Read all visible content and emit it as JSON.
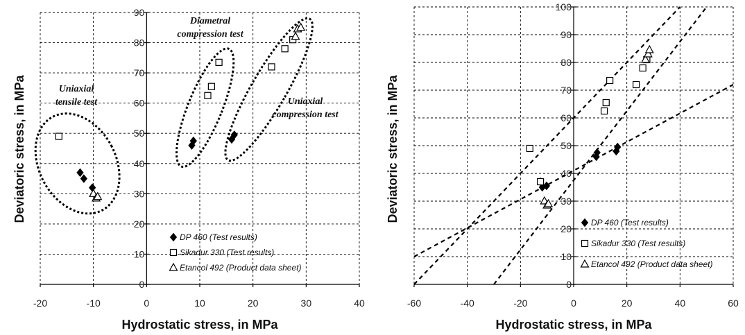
{
  "chart_data": [
    {
      "type": "scatter",
      "title": "",
      "xlabel": "Hydrostatic stress, in MPa",
      "ylabel": "Deviatoric stress, in MPa",
      "xlim": [
        -20,
        40
      ],
      "ylim": [
        0,
        90
      ],
      "xticks": [
        "-20",
        "-10",
        "0",
        "10",
        "20",
        "30",
        "40"
      ],
      "yticks": [
        "0",
        "10",
        "20",
        "30",
        "40",
        "50",
        "60",
        "70",
        "80",
        "90"
      ],
      "grid": true,
      "legend_position": "bottom-right",
      "series": [
        {
          "name": "DP 460 (Test results)",
          "marker": "diamond",
          "points": [
            [
              -12.5,
              37
            ],
            [
              -11.8,
              35
            ],
            [
              -10.2,
              32
            ],
            [
              8.5,
              46
            ],
            [
              8.8,
              47.5
            ],
            [
              16,
              48
            ],
            [
              16.5,
              49.5
            ]
          ]
        },
        {
          "name": "Sikadur 330 (Test results)",
          "marker": "square",
          "points": [
            [
              -16.5,
              49
            ],
            [
              11.5,
              62.5
            ],
            [
              12.2,
              65.5
            ],
            [
              13.6,
              73.5
            ],
            [
              23.5,
              72
            ],
            [
              26,
              78
            ],
            [
              27.5,
              81
            ]
          ]
        },
        {
          "name": "Etancol 492 (Product data sheet)",
          "marker": "triangle",
          "points": [
            [
              -10,
              30
            ],
            [
              -9.5,
              28.5
            ],
            [
              -9.2,
              29
            ],
            [
              28,
              82
            ],
            [
              28.4,
              84.5
            ],
            [
              29,
              85
            ]
          ]
        }
      ],
      "annotations": [
        {
          "text": [
            "Uniaxial",
            "tensile test"
          ]
        },
        {
          "text": [
            "Diametral",
            "compression test"
          ]
        },
        {
          "text": [
            "Uniaxial",
            "compression test"
          ]
        }
      ]
    },
    {
      "type": "scatter",
      "title": "",
      "xlabel": "Hydrostatic stress, in MPa",
      "ylabel": "Deviatoric stress, in MPa",
      "xlim": [
        -60,
        60
      ],
      "ylim": [
        0,
        100
      ],
      "xticks": [
        "-60",
        "-40",
        "-20",
        "0",
        "20",
        "40",
        "60"
      ],
      "yticks": [
        "0",
        "10",
        "20",
        "30",
        "40",
        "50",
        "60",
        "70",
        "80",
        "90",
        "100"
      ],
      "grid": true,
      "legend_position": "bottom-right",
      "series": [
        {
          "name": "DP 460 (Test results)",
          "marker": "diamond",
          "points": [
            [
              -12.5,
              37
            ],
            [
              -11.8,
              35
            ],
            [
              -10.2,
              35.5
            ],
            [
              8.5,
              46
            ],
            [
              8.8,
              47.5
            ],
            [
              16,
              48
            ],
            [
              16.5,
              49.5
            ]
          ]
        },
        {
          "name": "Sikadur 330 (Test results)",
          "marker": "square",
          "points": [
            [
              -16.5,
              49
            ],
            [
              -12.5,
              37
            ],
            [
              11.5,
              62.5
            ],
            [
              12.2,
              65.5
            ],
            [
              13.6,
              73.5
            ],
            [
              23.5,
              72
            ],
            [
              26,
              78
            ],
            [
              27.5,
              81
            ]
          ]
        },
        {
          "name": "Etancol 492 (Product data sheet)",
          "marker": "triangle",
          "points": [
            [
              -11,
              30
            ],
            [
              -10,
              28.5
            ],
            [
              -9.5,
              29
            ],
            [
              27,
              81
            ],
            [
              28,
              83
            ],
            [
              28.5,
              84.5
            ]
          ]
        }
      ],
      "fit_lines": [
        {
          "from": [
            -60,
            10
          ],
          "to": [
            60,
            72
          ]
        },
        {
          "from": [
            -60,
            0
          ],
          "to": [
            40,
            100
          ]
        },
        {
          "from": [
            -30,
            0
          ],
          "to": [
            50,
            100
          ]
        }
      ]
    }
  ]
}
